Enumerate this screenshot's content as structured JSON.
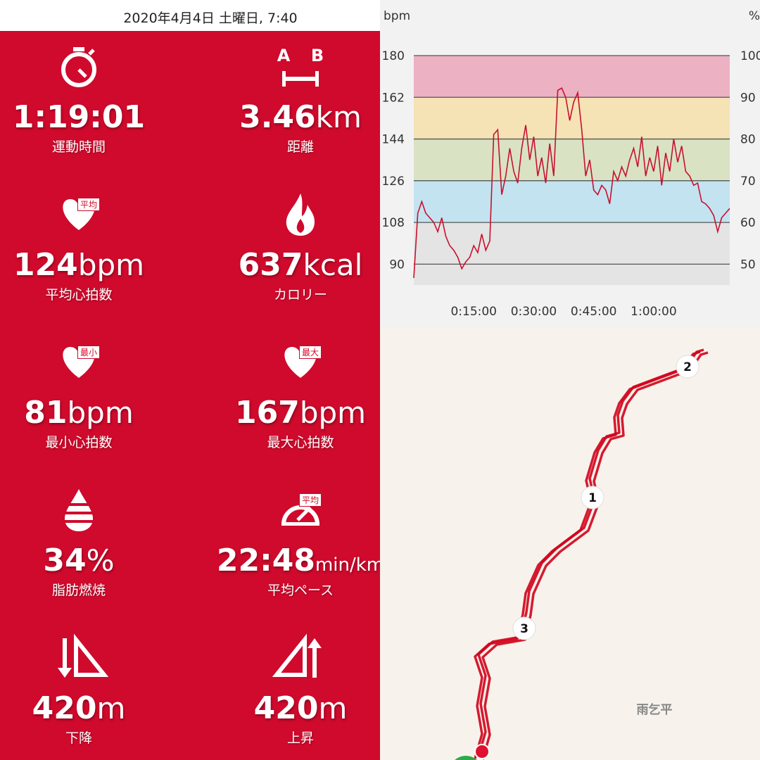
{
  "header": {
    "date": "2020年4月4日 土曜日, 7:40"
  },
  "stats": [
    {
      "value": "1:19:01",
      "label": "運動時間"
    },
    {
      "value": 3.46,
      "unit": "km",
      "label": "距離",
      "icon_labels": [
        "A",
        "B"
      ]
    },
    {
      "value": 124,
      "unit": "bpm",
      "label": "平均心拍数",
      "badge": "平均"
    },
    {
      "value": 637,
      "unit": "kcal",
      "label": "カロリー"
    },
    {
      "value": 81,
      "unit": "bpm",
      "label": "最小心拍数",
      "badge": "最小"
    },
    {
      "value": 167,
      "unit": "bpm",
      "label": "最大心拍数",
      "badge": "最大"
    },
    {
      "value": 34,
      "unit": "%",
      "label": "脂肪燃焼"
    },
    {
      "value": "22:48",
      "unit": "min/km",
      "label": "平均ペース",
      "badge": "平均"
    },
    {
      "value": 420,
      "unit": "m",
      "label": "下降"
    },
    {
      "value": 420,
      "unit": "m",
      "label": "上昇"
    }
  ],
  "chart_data": {
    "type": "line",
    "y_label": "bpm",
    "y2_label": "%",
    "color": "#c8102e",
    "x": [
      0,
      60,
      120,
      180,
      240,
      300,
      360,
      420,
      480,
      540,
      600,
      660,
      720,
      780,
      840,
      900,
      960,
      1020,
      1080,
      1140,
      1200,
      1260,
      1320,
      1380,
      1440,
      1500,
      1560,
      1620,
      1680,
      1740,
      1800,
      1860,
      1920,
      1980,
      2040,
      2100,
      2160,
      2220,
      2280,
      2340,
      2400,
      2460,
      2520,
      2580,
      2640,
      2700,
      2760,
      2820,
      2880,
      2940,
      3000,
      3060,
      3120,
      3180,
      3240,
      3300,
      3360,
      3420,
      3480,
      3540,
      3600,
      3660,
      3720,
      3780,
      3840,
      3900,
      3960,
      4020,
      4080,
      4140,
      4200,
      4260,
      4320,
      4380,
      4440,
      4500,
      4560,
      4620,
      4680,
      4740
    ],
    "values": [
      84,
      112,
      117,
      112,
      110,
      108,
      104,
      110,
      102,
      98,
      96,
      93,
      88,
      91,
      93,
      98,
      95,
      103,
      96,
      100,
      146,
      148,
      120,
      128,
      140,
      130,
      125,
      140,
      150,
      135,
      145,
      128,
      136,
      125,
      142,
      128,
      165,
      166,
      162,
      152,
      160,
      164,
      148,
      128,
      135,
      122,
      120,
      124,
      122,
      116,
      130,
      126,
      132,
      128,
      135,
      140,
      132,
      145,
      128,
      136,
      130,
      141,
      124,
      138,
      130,
      144,
      134,
      141,
      130,
      128,
      124,
      125,
      117,
      116,
      114,
      111,
      104,
      110,
      112,
      114
    ],
    "xlim": [
      0,
      4741
    ],
    "xticks": [
      {
        "value": 900,
        "label": "0:15:00"
      },
      {
        "value": 1800,
        "label": "0:30:00"
      },
      {
        "value": 2700,
        "label": "0:45:00"
      },
      {
        "value": 3600,
        "label": "1:00:00"
      }
    ],
    "ylim": [
      81,
      180
    ],
    "yticks": [
      90,
      108,
      126,
      144,
      162,
      180
    ],
    "y2lim": [
      45,
      100
    ],
    "y2ticks": [
      50,
      60,
      70,
      80,
      90,
      100
    ],
    "zones": [
      {
        "from": 81,
        "to": 108,
        "color": "#e4e4e4"
      },
      {
        "from": 108,
        "to": 126,
        "color": "#c3e3f0"
      },
      {
        "from": 126,
        "to": 144,
        "color": "#d9e3c4"
      },
      {
        "from": 144,
        "to": 162,
        "color": "#f5e2b5"
      },
      {
        "from": 162,
        "to": 180,
        "color": "#ecb1c3"
      }
    ]
  },
  "map": {
    "markers": [
      "1",
      "2",
      "3"
    ],
    "place": "雨乞平"
  }
}
